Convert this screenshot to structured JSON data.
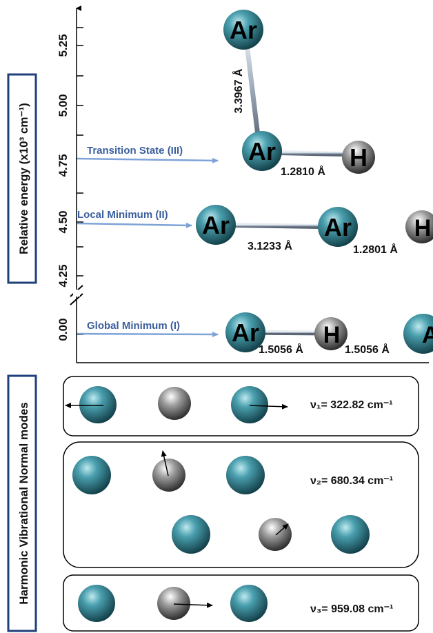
{
  "y_axis": {
    "label": "Relative energy (x10³ cm⁻¹)",
    "ticks": [
      "5.25",
      "5.00",
      "4.75",
      "4.50",
      "4.25",
      "0.00"
    ]
  },
  "states": [
    {
      "name": "Transition State (III)",
      "atoms": [
        "Ar",
        "Ar",
        "H"
      ],
      "distances": [
        "3.3967 Å",
        "1.2810 Å"
      ]
    },
    {
      "name": "Local Minimum (II)",
      "atoms": [
        "Ar",
        "Ar",
        "H"
      ],
      "distances": [
        "3.1233 Å",
        "1.2801 Å"
      ]
    },
    {
      "name": "Global Minimum (I)",
      "atoms": [
        "Ar",
        "H",
        "Ar"
      ],
      "distances": [
        "1.5056 Å",
        "1.5056 Å"
      ]
    }
  ],
  "modes_panel": {
    "label": "Harmonic Vibrational Normal modes",
    "modes": [
      {
        "label": "ν₁= 322.82 cm⁻¹"
      },
      {
        "label": "ν₂= 680.34 cm⁻¹"
      },
      {
        "label": "ν₃= 959.08 cm⁻¹"
      }
    ]
  },
  "colors": {
    "argon": "#2e8b9a",
    "hydrogen": "#9a9a9a",
    "arrow": "#7ea3d6",
    "state_text": "#3a5e9c"
  }
}
